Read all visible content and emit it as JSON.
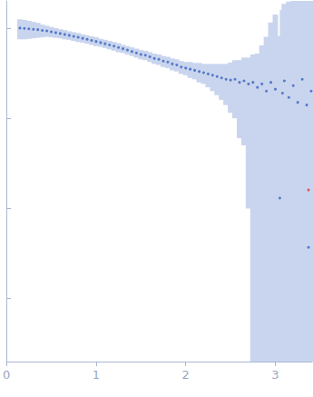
{
  "chart_data": {
    "type": "scatter",
    "log": "y",
    "tick_labels": "x",
    "xlim": [
      0,
      3.41
    ],
    "xticks": [
      0,
      1,
      2,
      3
    ],
    "ylim": [
      0.0002,
      2
    ],
    "yticks": [
      0.001,
      0.01,
      0.1,
      1
    ],
    "series": [
      {
        "color": "#3a62bf",
        "marker": "circle",
        "x": [
          0.15,
          0.2,
          0.25,
          0.3,
          0.35,
          0.4,
          0.45,
          0.5,
          0.55,
          0.6,
          0.65,
          0.7,
          0.75,
          0.8,
          0.85,
          0.9,
          0.95,
          1.0,
          1.05,
          1.1,
          1.15,
          1.2,
          1.25,
          1.3,
          1.35,
          1.4,
          1.45,
          1.5,
          1.55,
          1.6,
          1.65,
          1.7,
          1.75,
          1.8,
          1.85,
          1.9,
          1.95,
          2.0,
          2.05,
          2.1,
          2.15,
          2.2,
          2.25,
          2.3,
          2.35,
          2.4,
          2.45,
          2.5,
          2.55,
          2.6,
          2.65,
          2.7,
          2.75,
          2.8,
          2.85,
          2.9,
          2.95,
          3.0,
          3.05,
          3.08,
          3.1,
          3.15,
          3.2,
          3.25,
          3.3,
          3.35,
          3.37,
          3.4
        ],
        "values": [
          1.0,
          0.99,
          0.98,
          0.97,
          0.96,
          0.94,
          0.93,
          0.91,
          0.89,
          0.87,
          0.85,
          0.83,
          0.81,
          0.79,
          0.77,
          0.75,
          0.73,
          0.71,
          0.69,
          0.67,
          0.65,
          0.63,
          0.61,
          0.59,
          0.57,
          0.55,
          0.53,
          0.51,
          0.5,
          0.48,
          0.46,
          0.45,
          0.43,
          0.42,
          0.4,
          0.39,
          0.37,
          0.36,
          0.35,
          0.34,
          0.33,
          0.32,
          0.31,
          0.3,
          0.29,
          0.28,
          0.27,
          0.265,
          0.27,
          0.25,
          0.26,
          0.24,
          0.25,
          0.22,
          0.24,
          0.2,
          0.25,
          0.21,
          0.013,
          0.19,
          0.26,
          0.17,
          0.23,
          0.15,
          0.27,
          0.14,
          0.0037,
          0.2
        ],
        "errors": [
          0.25,
          0.24,
          0.22,
          0.2,
          0.18,
          0.15,
          0.13,
          0.12,
          0.11,
          0.1,
          0.1,
          0.09,
          0.09,
          0.09,
          0.08,
          0.08,
          0.08,
          0.08,
          0.07,
          0.07,
          0.07,
          0.07,
          0.07,
          0.06,
          0.06,
          0.06,
          0.06,
          0.06,
          0.06,
          0.06,
          0.06,
          0.06,
          0.06,
          0.06,
          0.06,
          0.06,
          0.06,
          0.06,
          0.07,
          0.07,
          0.08,
          0.08,
          0.09,
          0.1,
          0.11,
          0.12,
          0.13,
          0.15,
          0.17,
          0.19,
          0.21,
          0.23,
          0.26,
          0.3,
          0.4,
          0.6,
          0.9,
          1.2,
          0.8,
          1.4,
          1.6,
          1.8,
          2,
          2.2,
          2.4,
          2.6,
          2.6,
          2.8
        ]
      },
      {
        "color": "#e03a3a",
        "marker": "circle",
        "x": [
          3.37
        ],
        "values": [
          0.016
        ]
      }
    ]
  }
}
